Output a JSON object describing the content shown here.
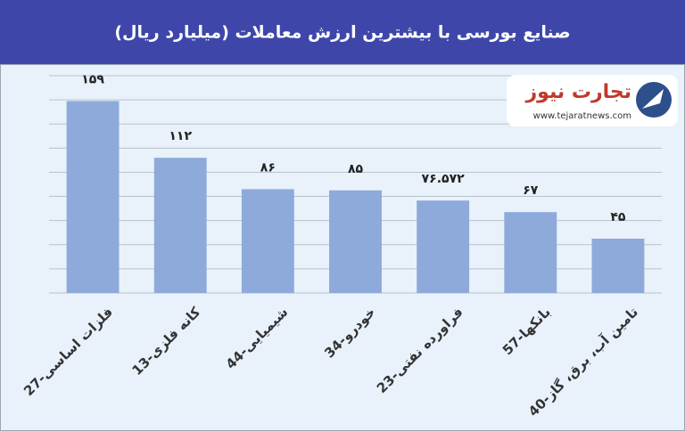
{
  "chart_data": {
    "type": "bar",
    "title": "صنایع بورسی با بیشترین ارزش معاملات  (میلیارد ریال)",
    "categories": [
      "27-فلزات اساسی",
      "13-کانه فلزی",
      "44-شیمیایی",
      "34-خودرو",
      "23-فراورده نفتی",
      "57-بانکها",
      "40-تامین آب، برق، گاز"
    ],
    "values": [
      159,
      112,
      86,
      85,
      76.572,
      67,
      45
    ],
    "value_labels": [
      "۱۵۹",
      "۱۱۲",
      "۸۶",
      "۸۵",
      "۷۶.۵۷۲",
      "۶۷",
      "۴۵"
    ],
    "color": "#8eaadb",
    "ylim": [
      0,
      180
    ],
    "yticks": [
      0,
      20,
      40,
      60,
      80,
      100,
      120,
      140,
      160,
      180
    ],
    "grid": true
  },
  "logo": {
    "name": "تجارت نیوز",
    "url": "www.tejaratnews.com"
  }
}
